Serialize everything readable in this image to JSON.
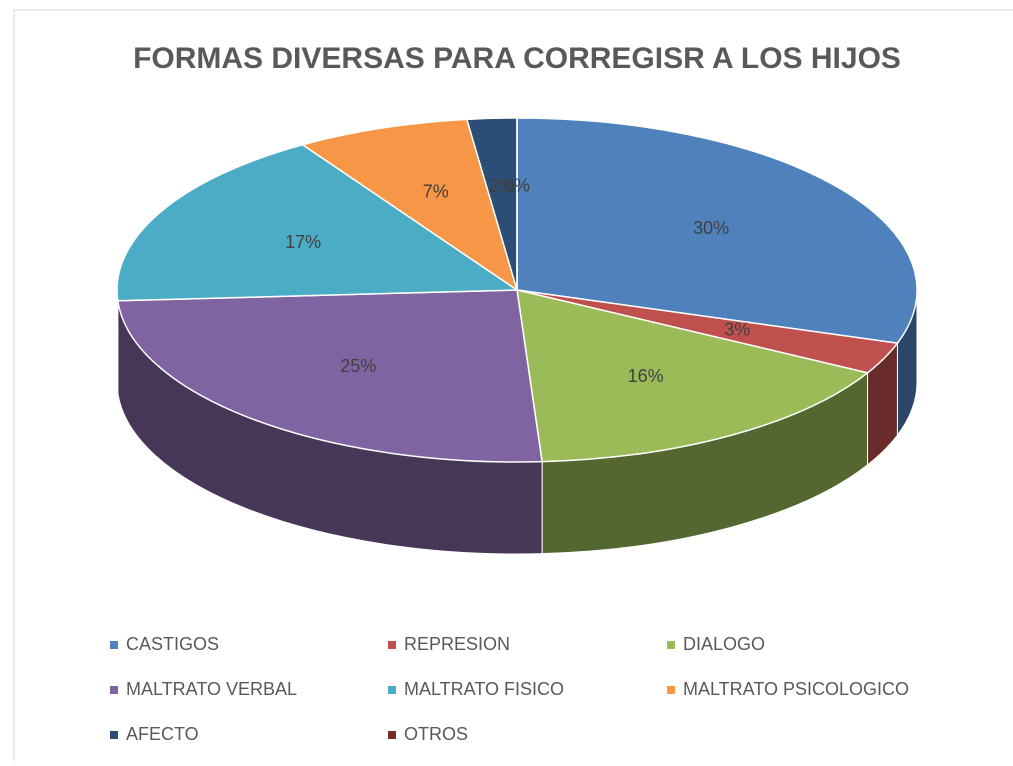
{
  "chart_data": {
    "type": "pie",
    "title": "FORMAS DIVERSAS PARA CORREGISR A LOS HIJOS",
    "categories": [
      "CASTIGOS",
      "REPRESION",
      "DIALOGO",
      "MALTRATO VERBAL",
      "MALTRATO FISICO",
      "MALTRATO PSICOLOGICO",
      "AFECTO",
      "OTROS"
    ],
    "values": [
      30,
      3,
      16,
      25,
      17,
      7,
      2,
      0
    ],
    "value_labels": [
      "30%",
      "3%",
      "16%",
      "25%",
      "17%",
      "7%",
      "2%",
      "0%"
    ],
    "colors": [
      "#4f81bd",
      "#c0504d",
      "#9bbb59",
      "#8064a2",
      "#4bacc6",
      "#f79646",
      "#2c4d75",
      "#772c2a"
    ],
    "legend": "bottom"
  }
}
